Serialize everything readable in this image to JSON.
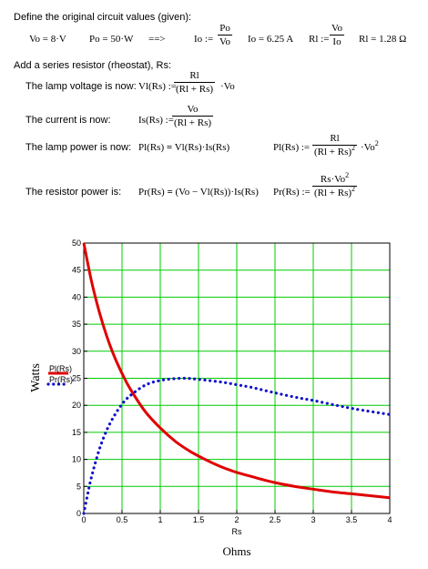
{
  "doc": {
    "heading1": "Define the original circuit values (given):",
    "vo_def": "Vo = 8·V",
    "po_def": "Po = 50·W",
    "arrow": "==>",
    "io_lhs": "Io :=",
    "io_num": "Po",
    "io_den": "Vo",
    "io_val": "Io = 6.25 A",
    "rl_lhs": "Rl :=",
    "rl_num": "Vo",
    "rl_den": "Io",
    "rl_val": "Rl = 1.28 Ω",
    "heading2": "Add a series resistor (rheostat), Rs:",
    "lamp_voltage_label": "The lamp voltage is now:",
    "vl_lhs": "Vl(Rs) :=",
    "vl_num": "Rl",
    "vl_den": "(Rl + Rs)",
    "vl_tail": "·Vo",
    "current_label": "The current is now:",
    "is_lhs": "Is(Rs) :=",
    "is_num": "Vo",
    "is_den": "(Rl + Rs)",
    "lamp_power_label": "The lamp power is now:",
    "pl_expr_a": "Pl(Rs)",
    "pl_expr_eq": "=",
    "pl_expr_b": "Vl(Rs)·Is(Rs)",
    "pl2_lhs": "Pl(Rs) :=",
    "pl2_num": "Rl",
    "pl2_den": "(Rl + Rs)",
    "pl2_tail": "·Vo",
    "resistor_power_label": "The resistor power is:",
    "pr_expr_a": "Pr(Rs)",
    "pr_expr_eq": "=",
    "pr_expr_b": "(Vo − Vl(Rs))·Is(Rs)",
    "pr2_lhs": "Pr(Rs) :=",
    "pr2_num": "Rs·Vo",
    "pr2_den": "(Rl + Rs)",
    "exp2": "2"
  },
  "chart_data": {
    "type": "line",
    "xlabel": "Rs",
    "xunits": "Ohms",
    "ylabel": "Watts",
    "xlim": [
      0,
      4
    ],
    "ylim": [
      0,
      50
    ],
    "xticks": [
      0,
      0.5,
      1,
      1.5,
      2,
      2.5,
      3,
      3.5,
      4
    ],
    "xtick_labels": [
      "0",
      "0.5",
      "1",
      "1.5",
      "2",
      "2.5",
      "3",
      "3.5",
      "4"
    ],
    "yticks": [
      0,
      5,
      10,
      15,
      20,
      25,
      30,
      35,
      40,
      45,
      50
    ],
    "ytick_labels": [
      "0",
      "5",
      "10",
      "15",
      "20",
      "25",
      "30",
      "35",
      "40",
      "45",
      "50"
    ],
    "grid": true,
    "grid_color": "#00cc00",
    "legend_placement": "left",
    "series": [
      {
        "name": "Pl(Rs)",
        "color": "#e00000",
        "style": "solid",
        "x": [
          0,
          0.1,
          0.2,
          0.3,
          0.4,
          0.5,
          0.6,
          0.8,
          1.0,
          1.2,
          1.4,
          1.6,
          1.8,
          2.0,
          2.2,
          2.5,
          2.8,
          3.0,
          3.3,
          3.6,
          4.0
        ],
        "y": [
          50.0,
          43.0,
          37.4,
          32.8,
          29.0,
          25.9,
          23.2,
          18.9,
          15.8,
          13.3,
          11.4,
          9.9,
          8.6,
          7.6,
          6.8,
          5.7,
          4.9,
          4.5,
          3.9,
          3.5,
          2.9
        ]
      },
      {
        "name": "Pr(Rs)",
        "color": "#1010cc",
        "style": "dotted",
        "x": [
          0,
          0.05,
          0.1,
          0.2,
          0.3,
          0.4,
          0.5,
          0.6,
          0.8,
          1.0,
          1.28,
          1.5,
          1.8,
          2.0,
          2.2,
          2.5,
          2.8,
          3.0,
          3.3,
          3.6,
          4.0
        ],
        "y": [
          0,
          3.5,
          6.7,
          11.7,
          15.4,
          18.1,
          20.2,
          21.7,
          23.7,
          24.6,
          25.0,
          24.8,
          24.3,
          23.8,
          23.3,
          22.3,
          21.4,
          20.9,
          20.0,
          19.2,
          18.3
        ]
      }
    ]
  }
}
